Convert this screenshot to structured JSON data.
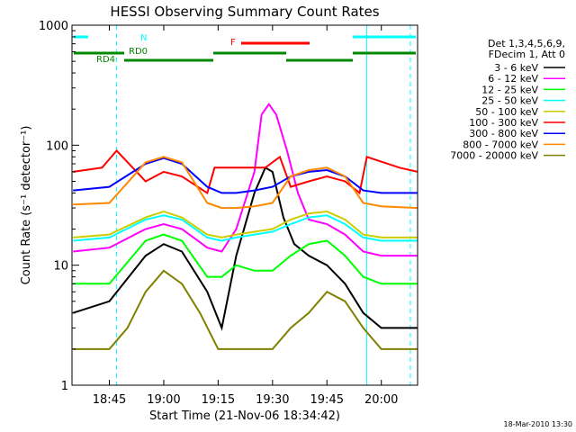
{
  "chart_data": {
    "type": "line",
    "title": "HESSI Observing Summary Count Rates",
    "xlabel": "Start Time (21-Nov-06 18:34:42)",
    "ylabel": "Count Rate (s⁻¹ detector⁻¹)",
    "yscale": "log",
    "xlim": [
      "18:34:42",
      "20:10:00"
    ],
    "ylim": [
      1,
      1000
    ],
    "x_ticks": [
      "18:45",
      "19:00",
      "19:15",
      "19:30",
      "19:45",
      "20:00"
    ],
    "y_ticks": [
      "1",
      "10",
      "100",
      "1000"
    ],
    "grid": false,
    "legend_position": "right",
    "legend_header": [
      "Det 1,3,4,5,6,9,",
      "FDecim 1, Att 0"
    ],
    "series": [
      {
        "name": "3 - 6 keV",
        "color": "#000000",
        "x": [
          "18:35",
          "18:45",
          "18:55",
          "19:00",
          "19:05",
          "19:12",
          "19:16",
          "19:20",
          "19:25",
          "19:28",
          "19:30",
          "19:33",
          "19:36",
          "19:40",
          "19:45",
          "19:50",
          "19:55",
          "20:00",
          "20:10"
        ],
        "y": [
          4,
          5,
          12,
          15,
          13,
          6,
          3,
          12,
          40,
          65,
          60,
          25,
          15,
          12,
          10,
          7,
          4,
          3,
          3
        ]
      },
      {
        "name": "6 - 12 keV",
        "color": "#ff00ff",
        "x": [
          "18:35",
          "18:45",
          "18:55",
          "19:00",
          "19:05",
          "19:12",
          "19:16",
          "19:20",
          "19:25",
          "19:27",
          "19:29",
          "19:31",
          "19:34",
          "19:37",
          "19:40",
          "19:45",
          "19:50",
          "19:55",
          "20:00",
          "20:10"
        ],
        "y": [
          13,
          14,
          20,
          22,
          20,
          14,
          13,
          20,
          60,
          180,
          220,
          180,
          90,
          40,
          24,
          22,
          18,
          13,
          12,
          12
        ]
      },
      {
        "name": "12 - 25 keV",
        "color": "#00ff00",
        "x": [
          "18:35",
          "18:45",
          "18:55",
          "19:00",
          "19:05",
          "19:12",
          "19:16",
          "19:20",
          "19:25",
          "19:30",
          "19:35",
          "19:40",
          "19:45",
          "19:50",
          "19:55",
          "20:00",
          "20:10"
        ],
        "y": [
          7,
          7,
          16,
          18,
          16,
          8,
          8,
          10,
          9,
          9,
          12,
          15,
          16,
          12,
          8,
          7,
          7
        ]
      },
      {
        "name": "25 - 50 keV",
        "color": "#00ffff",
        "x": [
          "18:35",
          "18:45",
          "18:55",
          "19:00",
          "19:05",
          "19:12",
          "19:16",
          "19:20",
          "19:25",
          "19:30",
          "19:35",
          "19:40",
          "19:45",
          "19:50",
          "19:55",
          "20:00",
          "20:10"
        ],
        "y": [
          16,
          17,
          24,
          26,
          24,
          17,
          16,
          17,
          18,
          19,
          22,
          25,
          26,
          22,
          17,
          16,
          16
        ]
      },
      {
        "name": "50 - 100 keV",
        "color": "#cccc00",
        "x": [
          "18:35",
          "18:45",
          "18:55",
          "19:00",
          "19:05",
          "19:12",
          "19:16",
          "19:20",
          "19:25",
          "19:30",
          "19:35",
          "19:40",
          "19:45",
          "19:50",
          "19:55",
          "20:00",
          "20:10"
        ],
        "y": [
          17,
          18,
          25,
          28,
          25,
          18,
          17,
          18,
          19,
          20,
          24,
          27,
          28,
          24,
          18,
          17,
          17
        ]
      },
      {
        "name": "100 - 300 keV",
        "color": "#ff0000",
        "x": [
          "18:35",
          "18:43",
          "18:47",
          "18:55",
          "19:00",
          "19:05",
          "19:12",
          "19:14",
          "19:20",
          "19:28",
          "19:32",
          "19:35",
          "19:40",
          "19:45",
          "19:50",
          "19:54",
          "19:56",
          "20:05",
          "20:10"
        ],
        "y": [
          60,
          65,
          90,
          50,
          60,
          55,
          40,
          65,
          65,
          65,
          80,
          45,
          50,
          55,
          50,
          40,
          80,
          65,
          60
        ]
      },
      {
        "name": "300 - 800 keV",
        "color": "#0000ff",
        "x": [
          "18:35",
          "18:45",
          "18:55",
          "19:00",
          "19:05",
          "19:12",
          "19:16",
          "19:20",
          "19:25",
          "19:30",
          "19:35",
          "19:40",
          "19:45",
          "19:50",
          "19:55",
          "20:00",
          "20:10"
        ],
        "y": [
          42,
          45,
          70,
          78,
          70,
          45,
          40,
          40,
          42,
          45,
          55,
          60,
          62,
          55,
          42,
          40,
          40
        ]
      },
      {
        "name": "800 - 7000 keV",
        "color": "#ff8800",
        "x": [
          "18:35",
          "18:45",
          "18:55",
          "19:00",
          "19:05",
          "19:12",
          "19:16",
          "19:20",
          "19:25",
          "19:30",
          "19:35",
          "19:40",
          "19:45",
          "19:50",
          "19:55",
          "20:00",
          "20:10"
        ],
        "y": [
          32,
          33,
          72,
          80,
          72,
          33,
          30,
          30,
          31,
          33,
          55,
          62,
          65,
          55,
          33,
          31,
          30
        ]
      },
      {
        "name": "7000 - 20000 keV",
        "color": "#808000",
        "x": [
          "18:35",
          "18:45",
          "18:50",
          "18:55",
          "19:00",
          "19:05",
          "19:10",
          "19:15",
          "19:20",
          "19:25",
          "19:30",
          "19:35",
          "19:40",
          "19:45",
          "19:50",
          "19:55",
          "20:00",
          "20:10"
        ],
        "y": [
          2,
          2,
          3,
          6,
          9,
          7,
          4,
          2,
          2,
          2,
          2,
          3,
          4,
          6,
          5,
          3,
          2,
          2
        ]
      }
    ],
    "markers": {
      "cyan_lines": [
        "18:47",
        "19:56",
        "20:08"
      ],
      "cyan_dashed": [
        "18:47",
        "20:08"
      ],
      "night_label": "N",
      "flare_label": "F",
      "rd0_label": "RD0",
      "rd4_label": "RD4"
    },
    "timestamp": "18-Mar-2010 13:30"
  }
}
